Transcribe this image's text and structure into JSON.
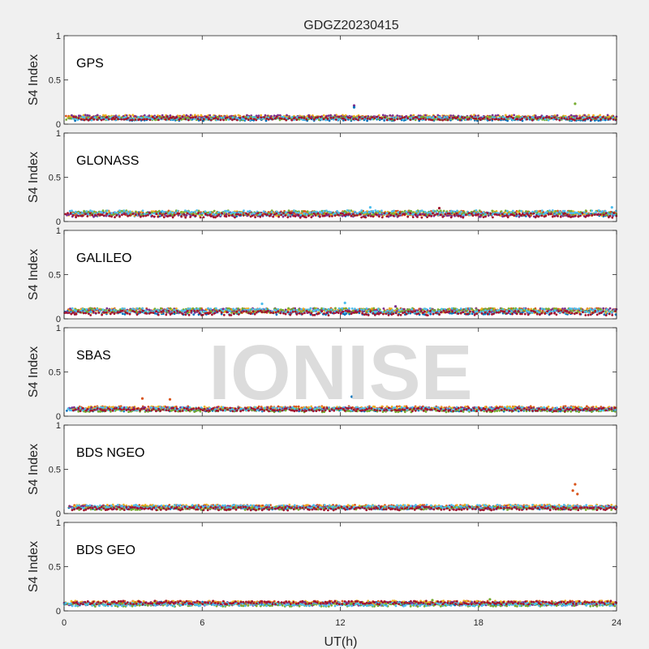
{
  "chart_data": {
    "type": "scatter",
    "title": "GDGZ20230415",
    "xlabel": "UT(h)",
    "ylabel": "S4 Index",
    "xlim": [
      0,
      24
    ],
    "ylim": [
      0,
      1
    ],
    "x_ticks": [
      "0",
      "6",
      "12",
      "18",
      "24"
    ],
    "y_ticks": [
      "0",
      "0.5",
      "1"
    ],
    "grid": false,
    "watermark": "IONISE",
    "series_colors": [
      "#0072BD",
      "#D95319",
      "#EDB120",
      "#7E2F8E",
      "#77AC30",
      "#4DBEEE",
      "#A2142F"
    ],
    "panels": [
      {
        "label": "GPS",
        "baseline": 0.07,
        "spread": 0.03,
        "spikes": [
          {
            "x": 22.2,
            "y": 0.23,
            "series": 4
          },
          {
            "x": 12.6,
            "y": 0.21,
            "series": 3
          },
          {
            "x": 12.6,
            "y": 0.19,
            "series": 0
          }
        ]
      },
      {
        "label": "GLONASS",
        "baseline": 0.08,
        "spread": 0.04,
        "spikes": [
          {
            "x": 13.3,
            "y": 0.16,
            "series": 5
          },
          {
            "x": 23.8,
            "y": 0.16,
            "series": 5
          },
          {
            "x": 16.3,
            "y": 0.15,
            "series": 6
          }
        ]
      },
      {
        "label": "GALILEO",
        "baseline": 0.08,
        "spread": 0.04,
        "spikes": [
          {
            "x": 12.2,
            "y": 0.18,
            "series": 5
          },
          {
            "x": 8.6,
            "y": 0.17,
            "series": 5
          },
          {
            "x": 14.4,
            "y": 0.14,
            "series": 3
          }
        ]
      },
      {
        "label": "SBAS",
        "baseline": 0.08,
        "spread": 0.03,
        "spikes": [
          {
            "x": 3.4,
            "y": 0.2,
            "series": 1
          },
          {
            "x": 4.6,
            "y": 0.19,
            "series": 1
          },
          {
            "x": 12.5,
            "y": 0.22,
            "series": 0
          }
        ]
      },
      {
        "label": "BDS NGEO",
        "baseline": 0.07,
        "spread": 0.03,
        "spikes": [
          {
            "x": 22.2,
            "y": 0.33,
            "series": 1
          },
          {
            "x": 22.1,
            "y": 0.26,
            "series": 1
          },
          {
            "x": 22.3,
            "y": 0.22,
            "series": 1
          }
        ]
      },
      {
        "label": "BDS GEO",
        "baseline": 0.08,
        "spread": 0.03,
        "spikes": [
          {
            "x": 18.5,
            "y": 0.13,
            "series": 4
          },
          {
            "x": 16.0,
            "y": 0.12,
            "series": 4
          }
        ]
      }
    ]
  }
}
